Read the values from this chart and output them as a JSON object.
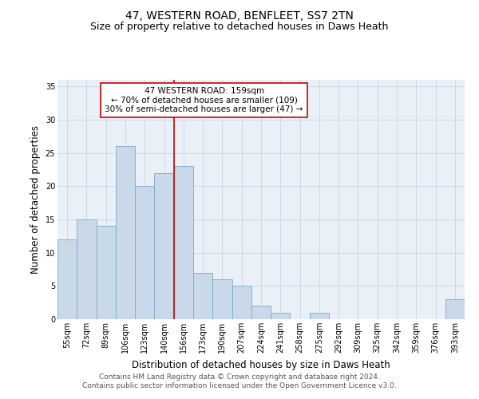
{
  "title": "47, WESTERN ROAD, BENFLEET, SS7 2TN",
  "subtitle": "Size of property relative to detached houses in Daws Heath",
  "xlabel": "Distribution of detached houses by size in Daws Heath",
  "ylabel": "Number of detached properties",
  "bin_labels": [
    "55sqm",
    "72sqm",
    "89sqm",
    "106sqm",
    "123sqm",
    "140sqm",
    "156sqm",
    "173sqm",
    "190sqm",
    "207sqm",
    "224sqm",
    "241sqm",
    "258sqm",
    "275sqm",
    "292sqm",
    "309sqm",
    "325sqm",
    "342sqm",
    "359sqm",
    "376sqm",
    "393sqm"
  ],
  "bar_heights": [
    12,
    15,
    14,
    26,
    20,
    22,
    23,
    7,
    6,
    5,
    2,
    1,
    0,
    1,
    0,
    0,
    0,
    0,
    0,
    0,
    3
  ],
  "bar_color": "#c9d9ea",
  "bar_edge_color": "#7aaac8",
  "vline_position": 6,
  "vline_color": "#cc0000",
  "annotation_text": "47 WESTERN ROAD: 159sqm\n← 70% of detached houses are smaller (109)\n30% of semi-detached houses are larger (47) →",
  "annotation_box_color": "#ffffff",
  "annotation_box_edge_color": "#cc0000",
  "ylim": [
    0,
    36
  ],
  "yticks": [
    0,
    5,
    10,
    15,
    20,
    25,
    30,
    35
  ],
  "grid_color": "#d0d8e8",
  "footer_line1": "Contains HM Land Registry data © Crown copyright and database right 2024.",
  "footer_line2": "Contains public sector information licensed under the Open Government Licence v3.0.",
  "title_fontsize": 10,
  "subtitle_fontsize": 9,
  "xlabel_fontsize": 8.5,
  "ylabel_fontsize": 8.5,
  "tick_fontsize": 7,
  "annotation_fontsize": 7.5,
  "footer_fontsize": 6.5
}
